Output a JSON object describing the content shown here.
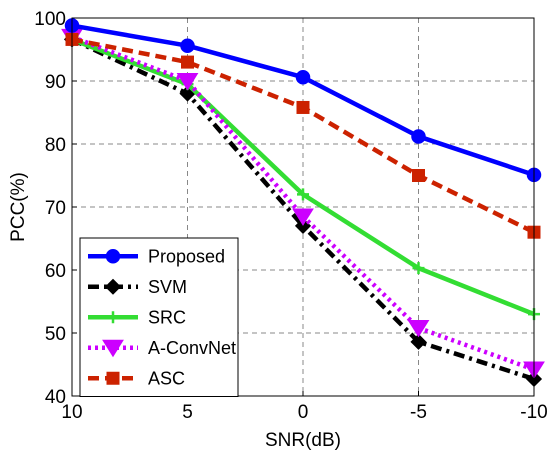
{
  "chart_data": {
    "type": "line",
    "xlabel": "SNR(dB)",
    "ylabel": "PCC(%)",
    "categories": [
      "10",
      "5",
      "0",
      "-5",
      "-10"
    ],
    "x": [
      10,
      5,
      0,
      -5,
      -10
    ],
    "ylim": [
      40,
      100
    ],
    "yticks": [
      "40",
      "50",
      "60",
      "70",
      "80",
      "90",
      "100"
    ],
    "grid": true,
    "legend_placement": "bottom-left",
    "series": [
      {
        "name": "Proposed",
        "values": [
          98.8,
          95.6,
          90.6,
          81.2,
          75.1
        ],
        "color": "#0000ff",
        "marker": "circle",
        "dash": "solid"
      },
      {
        "name": "SVM",
        "values": [
          96.6,
          88.0,
          67.0,
          48.6,
          42.7
        ],
        "color": "#000000",
        "marker": "diamond",
        "dash": "dashdot"
      },
      {
        "name": "SRC",
        "values": [
          96.6,
          89.5,
          72.0,
          60.3,
          53.0
        ],
        "color": "#33dd33",
        "marker": "plus",
        "dash": "solid"
      },
      {
        "name": "A-ConvNet",
        "values": [
          97.0,
          90.0,
          68.5,
          50.8,
          44.2
        ],
        "color": "#cc00ff",
        "marker": "triangle-down",
        "dash": "dotted"
      },
      {
        "name": "ASC",
        "values": [
          96.6,
          93.0,
          85.8,
          75.0,
          66.0
        ],
        "color": "#cc2200",
        "marker": "square",
        "dash": "dashed"
      }
    ]
  }
}
